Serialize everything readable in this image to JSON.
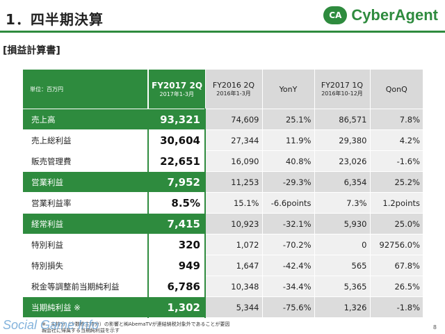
{
  "header": {
    "title": "1．四半期決算",
    "logo_mark": "CA",
    "logo_text": "CyberAgent"
  },
  "section": {
    "title": "[損益計算書]"
  },
  "table": {
    "unit": "単位：百万円",
    "columns": [
      {
        "main": "FY2017 2Q",
        "sub": "2017年1-3月"
      },
      {
        "main": "FY2016 2Q",
        "sub": "2016年1-3月"
      },
      {
        "main": "YonY",
        "sub": ""
      },
      {
        "main": "FY2017 1Q",
        "sub": "2016年10-12月"
      },
      {
        "main": "QonQ",
        "sub": ""
      }
    ],
    "rows": [
      {
        "label": "売上高",
        "values": [
          "93,321",
          "74,609",
          "25.1%",
          "86,571",
          "7.8%"
        ]
      },
      {
        "label": "売上総利益",
        "values": [
          "30,604",
          "27,344",
          "11.9%",
          "29,380",
          "4.2%"
        ]
      },
      {
        "label": "販売管理費",
        "values": [
          "22,651",
          "16,090",
          "40.8%",
          "23,026",
          "-1.6%"
        ]
      },
      {
        "label": "営業利益",
        "values": [
          "7,952",
          "11,253",
          "-29.3%",
          "6,354",
          "25.2%"
        ]
      },
      {
        "label": "営業利益率",
        "values": [
          "8.5%",
          "15.1%",
          "-6.6points",
          "7.3%",
          "1.2points"
        ]
      },
      {
        "label": "経常利益",
        "values": [
          "7,415",
          "10,923",
          "-32.1%",
          "5,930",
          "25.0%"
        ]
      },
      {
        "label": "特別利益",
        "values": [
          "320",
          "1,072",
          "-70.2%",
          "0",
          "92756.0%"
        ]
      },
      {
        "label": "特別損失",
        "values": [
          "949",
          "1,647",
          "-42.4%",
          "565",
          "67.8%"
        ]
      },
      {
        "label": "税金等調整前当期純利益",
        "values": [
          "6,786",
          "10,348",
          "-34.4%",
          "5,365",
          "26.5%"
        ]
      },
      {
        "label": "当期純利益 ※",
        "values": [
          "1,302",
          "5,344",
          "-75.6%",
          "1,326",
          "-1.8%"
        ]
      }
    ]
  },
  "footnote": {
    "line1": "※　主持分（少数株主持分）の影響と㈱AbemaTVが連結納税対象外であることが要因",
    "line2": "親会社に帰属する当期純利益を示す"
  },
  "watermark": "Social Game Info",
  "page_number": "8",
  "colors": {
    "accent": "#2e8b3e",
    "gray_header": "#d9d9d9"
  }
}
